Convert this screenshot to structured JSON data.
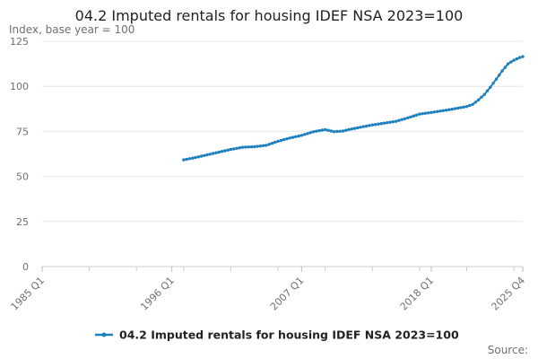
{
  "chart_data": {
    "type": "line",
    "title": "04.2 Imputed rentals for housing IDEF NSA 2023=100",
    "ylabel": "Index, base year = 100",
    "xlabel": "",
    "ylim": [
      0,
      125
    ],
    "yticks": [
      "0",
      "25",
      "50",
      "75",
      "100",
      "125"
    ],
    "xlim": [
      1985.0,
      2025.75
    ],
    "xticks": [
      {
        "label": "1985 Q1",
        "t": 1985.0
      },
      {
        "label": "1996 Q1",
        "t": 1996.0
      },
      {
        "label": "2007 Q1",
        "t": 2007.0
      },
      {
        "label": "2018 Q1",
        "t": 2018.0
      },
      {
        "label": "2025 Q4",
        "t": 2025.75
      }
    ],
    "grid": true,
    "legend_position": "bottom",
    "series": [
      {
        "name": "04.2 Imputed rentals for housing IDEF NSA 2023=100",
        "color": "#1F80C0",
        "points": [
          {
            "t": 1997.0,
            "v": 59.2
          },
          {
            "t": 1998.0,
            "v": 60.5
          },
          {
            "t": 1999.0,
            "v": 62.0
          },
          {
            "t": 2000.0,
            "v": 63.5
          },
          {
            "t": 2001.0,
            "v": 65.0
          },
          {
            "t": 2002.0,
            "v": 66.2
          },
          {
            "t": 2003.0,
            "v": 66.5
          },
          {
            "t": 2004.0,
            "v": 67.3
          },
          {
            "t": 2005.0,
            "v": 69.5
          },
          {
            "t": 2006.0,
            "v": 71.3
          },
          {
            "t": 2007.0,
            "v": 72.8
          },
          {
            "t": 2008.0,
            "v": 74.8
          },
          {
            "t": 2009.0,
            "v": 76.0
          },
          {
            "t": 2009.75,
            "v": 74.8
          },
          {
            "t": 2010.5,
            "v": 75.2
          },
          {
            "t": 2011.0,
            "v": 76.0
          },
          {
            "t": 2012.0,
            "v": 77.3
          },
          {
            "t": 2013.0,
            "v": 78.6
          },
          {
            "t": 2014.0,
            "v": 79.6
          },
          {
            "t": 2015.0,
            "v": 80.6
          },
          {
            "t": 2016.0,
            "v": 82.5
          },
          {
            "t": 2017.0,
            "v": 84.6
          },
          {
            "t": 2018.0,
            "v": 85.5
          },
          {
            "t": 2019.0,
            "v": 86.5
          },
          {
            "t": 2020.0,
            "v": 87.6
          },
          {
            "t": 2021.0,
            "v": 88.8
          },
          {
            "t": 2021.5,
            "v": 90.0
          },
          {
            "t": 2022.0,
            "v": 92.5
          },
          {
            "t": 2022.5,
            "v": 95.5
          },
          {
            "t": 2023.0,
            "v": 99.5
          },
          {
            "t": 2023.5,
            "v": 104.0
          },
          {
            "t": 2024.0,
            "v": 108.5
          },
          {
            "t": 2024.5,
            "v": 112.5
          },
          {
            "t": 2025.0,
            "v": 114.5
          },
          {
            "t": 2025.5,
            "v": 116.0
          },
          {
            "t": 2025.75,
            "v": 116.5
          }
        ]
      }
    ],
    "source": "Source:"
  }
}
